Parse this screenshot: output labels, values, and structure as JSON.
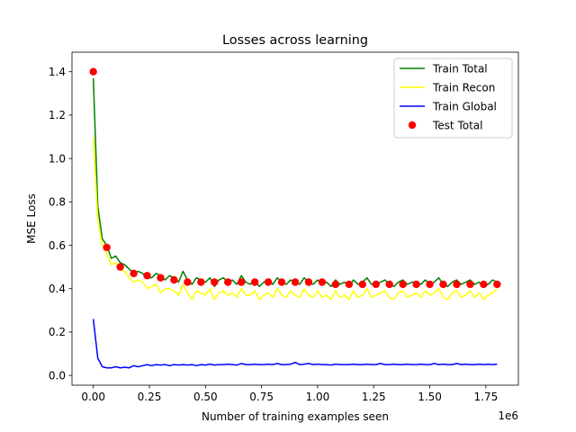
{
  "chart_data": {
    "type": "line",
    "title": "Losses across learning",
    "xlabel": "Number of training examples seen",
    "ylabel": "MSE Loss",
    "x_offset_label": "1e6",
    "xlim": [
      -95000,
      1895000
    ],
    "ylim": [
      -0.045,
      1.49
    ],
    "x_ticks": [
      0,
      0.25,
      0.5,
      0.75,
      1.0,
      1.25,
      1.5,
      1.75
    ],
    "x_tick_labels": [
      "0.00",
      "0.25",
      "0.50",
      "0.75",
      "1.00",
      "1.25",
      "1.50",
      "1.75"
    ],
    "y_ticks": [
      0.0,
      0.2,
      0.4,
      0.6,
      0.8,
      1.0,
      1.2,
      1.4
    ],
    "y_tick_labels": [
      "0.0",
      "0.2",
      "0.4",
      "0.6",
      "0.8",
      "1.0",
      "1.2",
      "1.4"
    ],
    "grid": false,
    "legend_position": "top-right",
    "series": [
      {
        "name": "Train Total",
        "kind": "line",
        "color": "#008000",
        "x": [
          0,
          20000,
          40000,
          60000,
          80000,
          100000,
          120000,
          140000,
          160000,
          180000,
          200000,
          220000,
          240000,
          260000,
          280000,
          300000,
          320000,
          340000,
          360000,
          380000,
          400000,
          420000,
          440000,
          460000,
          480000,
          500000,
          520000,
          540000,
          560000,
          580000,
          600000,
          620000,
          640000,
          660000,
          680000,
          700000,
          720000,
          740000,
          760000,
          780000,
          800000,
          820000,
          840000,
          860000,
          880000,
          900000,
          920000,
          940000,
          960000,
          980000,
          1000000,
          1020000,
          1040000,
          1060000,
          1080000,
          1100000,
          1120000,
          1140000,
          1160000,
          1180000,
          1200000,
          1220000,
          1240000,
          1260000,
          1280000,
          1300000,
          1320000,
          1340000,
          1360000,
          1380000,
          1400000,
          1420000,
          1440000,
          1460000,
          1480000,
          1500000,
          1520000,
          1540000,
          1560000,
          1580000,
          1600000,
          1620000,
          1640000,
          1660000,
          1680000,
          1700000,
          1720000,
          1740000,
          1760000,
          1780000,
          1800000
        ],
        "y": [
          1.37,
          0.78,
          0.63,
          0.6,
          0.54,
          0.55,
          0.52,
          0.51,
          0.49,
          0.47,
          0.48,
          0.47,
          0.45,
          0.45,
          0.47,
          0.46,
          0.44,
          0.46,
          0.45,
          0.43,
          0.48,
          0.44,
          0.42,
          0.45,
          0.44,
          0.43,
          0.45,
          0.41,
          0.44,
          0.45,
          0.43,
          0.44,
          0.42,
          0.46,
          0.43,
          0.42,
          0.44,
          0.41,
          0.43,
          0.44,
          0.42,
          0.45,
          0.43,
          0.42,
          0.44,
          0.43,
          0.42,
          0.45,
          0.43,
          0.42,
          0.44,
          0.42,
          0.43,
          0.41,
          0.44,
          0.42,
          0.43,
          0.41,
          0.44,
          0.42,
          0.43,
          0.45,
          0.42,
          0.42,
          0.43,
          0.44,
          0.42,
          0.41,
          0.43,
          0.44,
          0.42,
          0.43,
          0.43,
          0.42,
          0.44,
          0.42,
          0.43,
          0.45,
          0.42,
          0.41,
          0.43,
          0.44,
          0.42,
          0.43,
          0.44,
          0.42,
          0.43,
          0.41,
          0.42,
          0.44,
          0.43
        ]
      },
      {
        "name": "Train Recon",
        "kind": "line",
        "color": "#ffff00",
        "x": [
          0,
          20000,
          40000,
          60000,
          80000,
          100000,
          120000,
          140000,
          160000,
          180000,
          200000,
          220000,
          240000,
          260000,
          280000,
          300000,
          320000,
          340000,
          360000,
          380000,
          400000,
          420000,
          440000,
          460000,
          480000,
          500000,
          520000,
          540000,
          560000,
          580000,
          600000,
          620000,
          640000,
          660000,
          680000,
          700000,
          720000,
          740000,
          760000,
          780000,
          800000,
          820000,
          840000,
          860000,
          880000,
          900000,
          920000,
          940000,
          960000,
          980000,
          1000000,
          1020000,
          1040000,
          1060000,
          1080000,
          1100000,
          1120000,
          1140000,
          1160000,
          1180000,
          1200000,
          1220000,
          1240000,
          1260000,
          1280000,
          1300000,
          1320000,
          1340000,
          1360000,
          1380000,
          1400000,
          1420000,
          1440000,
          1460000,
          1480000,
          1500000,
          1520000,
          1540000,
          1560000,
          1580000,
          1600000,
          1620000,
          1640000,
          1660000,
          1680000,
          1700000,
          1720000,
          1740000,
          1760000,
          1780000,
          1800000
        ],
        "y": [
          1.1,
          0.72,
          0.6,
          0.56,
          0.51,
          0.52,
          0.49,
          0.48,
          0.45,
          0.43,
          0.44,
          0.43,
          0.4,
          0.41,
          0.42,
          0.38,
          0.4,
          0.4,
          0.39,
          0.37,
          0.42,
          0.38,
          0.35,
          0.39,
          0.38,
          0.37,
          0.4,
          0.35,
          0.38,
          0.39,
          0.37,
          0.38,
          0.36,
          0.4,
          0.37,
          0.37,
          0.39,
          0.35,
          0.37,
          0.38,
          0.36,
          0.4,
          0.37,
          0.36,
          0.39,
          0.37,
          0.36,
          0.4,
          0.37,
          0.36,
          0.39,
          0.36,
          0.37,
          0.35,
          0.39,
          0.36,
          0.37,
          0.35,
          0.39,
          0.36,
          0.37,
          0.4,
          0.36,
          0.37,
          0.38,
          0.39,
          0.36,
          0.35,
          0.38,
          0.39,
          0.36,
          0.37,
          0.38,
          0.36,
          0.39,
          0.37,
          0.38,
          0.4,
          0.36,
          0.35,
          0.38,
          0.39,
          0.36,
          0.37,
          0.39,
          0.36,
          0.38,
          0.35,
          0.37,
          0.38,
          0.4
        ]
      },
      {
        "name": "Train Global",
        "kind": "line",
        "color": "#0000ff",
        "x": [
          0,
          20000,
          40000,
          60000,
          80000,
          100000,
          120000,
          140000,
          160000,
          180000,
          200000,
          220000,
          240000,
          260000,
          280000,
          300000,
          320000,
          340000,
          360000,
          380000,
          400000,
          420000,
          440000,
          460000,
          480000,
          500000,
          520000,
          540000,
          560000,
          580000,
          600000,
          620000,
          640000,
          660000,
          680000,
          700000,
          720000,
          740000,
          760000,
          780000,
          800000,
          820000,
          840000,
          860000,
          880000,
          900000,
          920000,
          940000,
          960000,
          980000,
          1000000,
          1020000,
          1040000,
          1060000,
          1080000,
          1100000,
          1120000,
          1140000,
          1160000,
          1180000,
          1200000,
          1220000,
          1240000,
          1260000,
          1280000,
          1300000,
          1320000,
          1340000,
          1360000,
          1380000,
          1400000,
          1420000,
          1440000,
          1460000,
          1480000,
          1500000,
          1520000,
          1540000,
          1560000,
          1580000,
          1600000,
          1620000,
          1640000,
          1660000,
          1680000,
          1700000,
          1720000,
          1740000,
          1760000,
          1780000,
          1800000
        ],
        "y": [
          0.26,
          0.08,
          0.04,
          0.035,
          0.035,
          0.04,
          0.035,
          0.038,
          0.035,
          0.045,
          0.04,
          0.045,
          0.05,
          0.045,
          0.05,
          0.048,
          0.05,
          0.045,
          0.05,
          0.048,
          0.05,
          0.048,
          0.05,
          0.045,
          0.05,
          0.048,
          0.052,
          0.048,
          0.05,
          0.05,
          0.052,
          0.05,
          0.048,
          0.055,
          0.05,
          0.05,
          0.052,
          0.05,
          0.05,
          0.052,
          0.05,
          0.055,
          0.05,
          0.05,
          0.052,
          0.06,
          0.05,
          0.052,
          0.055,
          0.05,
          0.052,
          0.05,
          0.05,
          0.048,
          0.052,
          0.05,
          0.05,
          0.05,
          0.052,
          0.05,
          0.05,
          0.052,
          0.05,
          0.05,
          0.055,
          0.05,
          0.05,
          0.052,
          0.05,
          0.05,
          0.052,
          0.05,
          0.05,
          0.052,
          0.05,
          0.05,
          0.055,
          0.05,
          0.052,
          0.05,
          0.05,
          0.055,
          0.05,
          0.052,
          0.05,
          0.05,
          0.052,
          0.05,
          0.052,
          0.05,
          0.052
        ]
      },
      {
        "name": "Test Total",
        "kind": "scatter",
        "color": "#ff0000",
        "x": [
          0,
          60000,
          120000,
          180000,
          240000,
          300000,
          360000,
          420000,
          480000,
          540000,
          600000,
          660000,
          720000,
          780000,
          840000,
          900000,
          960000,
          1020000,
          1080000,
          1140000,
          1200000,
          1260000,
          1320000,
          1380000,
          1440000,
          1500000,
          1560000,
          1620000,
          1680000,
          1740000,
          1800000
        ],
        "y": [
          1.4,
          0.59,
          0.5,
          0.47,
          0.46,
          0.45,
          0.44,
          0.43,
          0.43,
          0.43,
          0.43,
          0.43,
          0.43,
          0.43,
          0.43,
          0.43,
          0.43,
          0.43,
          0.42,
          0.42,
          0.42,
          0.42,
          0.42,
          0.42,
          0.42,
          0.42,
          0.42,
          0.42,
          0.42,
          0.42,
          0.42
        ]
      }
    ]
  }
}
